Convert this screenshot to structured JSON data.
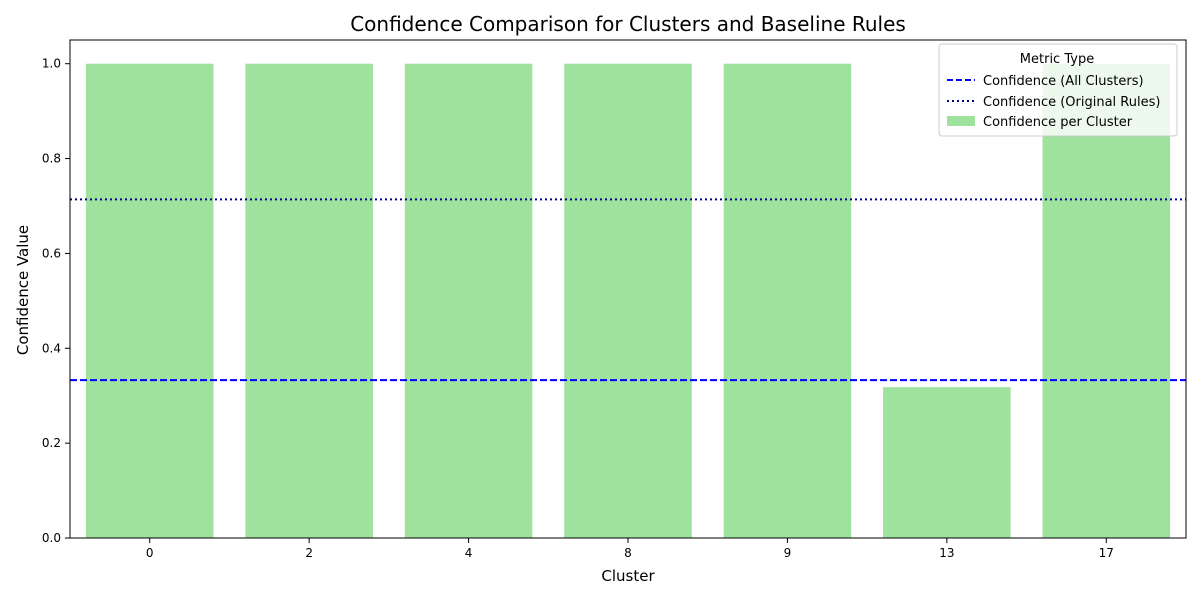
{
  "chart_data": {
    "type": "bar",
    "title": "Confidence Comparison for Clusters and Baseline Rules",
    "xlabel": "Cluster",
    "ylabel": "Confidence Value",
    "categories": [
      "0",
      "2",
      "4",
      "8",
      "9",
      "13",
      "17"
    ],
    "series": [
      {
        "name": "Confidence per Cluster",
        "values": [
          1.0,
          1.0,
          1.0,
          1.0,
          1.0,
          0.318,
          1.0
        ],
        "color": "#9ee29e"
      }
    ],
    "reference_lines": [
      {
        "name": "Confidence (All Clusters)",
        "value": 0.333,
        "color": "#0000ff",
        "style": "dashed"
      },
      {
        "name": "Confidence (Original Rules)",
        "value": 0.714,
        "color": "#00008b",
        "style": "dotted"
      }
    ],
    "ylim": [
      0,
      1.05
    ],
    "yticks": [
      "0.0",
      "0.2",
      "0.4",
      "0.6",
      "0.8",
      "1.0"
    ],
    "grid": false,
    "legend": {
      "title": "Metric Type",
      "placement": "top-right"
    }
  }
}
